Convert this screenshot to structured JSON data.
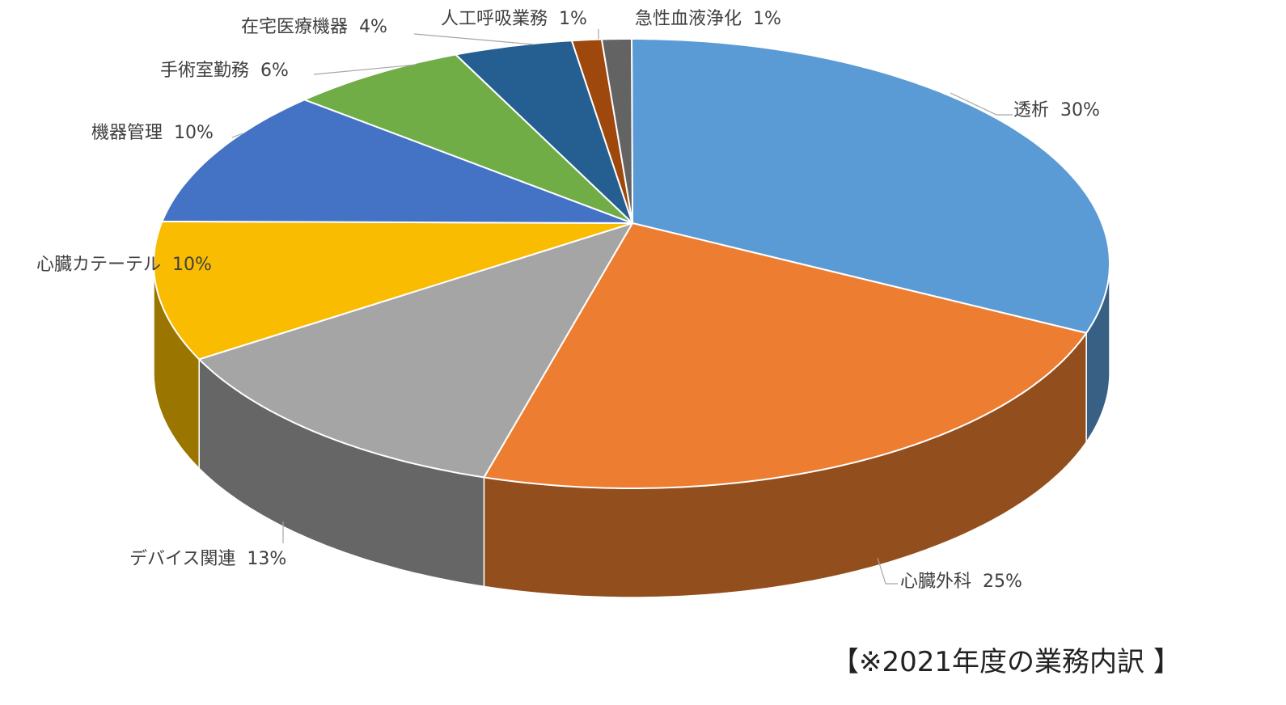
{
  "chart_data": {
    "type": "pie3d",
    "caption": "【※2021年度の業務内訳 】",
    "categories": [
      "透析",
      "心臓外科",
      "デバイス関連",
      "心臓カテーテル",
      "機器管理",
      "手術室勤務",
      "在宅医療機器",
      "人工呼吸業務",
      "急性血液浄化"
    ],
    "values": [
      30,
      25,
      13,
      10,
      10,
      6,
      4,
      1,
      1
    ],
    "value_labels": [
      "30%",
      "25%",
      "13%",
      "10%",
      "10%",
      "6%",
      "4%",
      "1%",
      "1%"
    ],
    "colors": [
      "#5b9bd5",
      "#ed7d31",
      "#a5a5a5",
      "#f9bc00",
      "#4472c4",
      "#70ad47",
      "#255e91",
      "#9e480e",
      "#636363"
    ]
  }
}
